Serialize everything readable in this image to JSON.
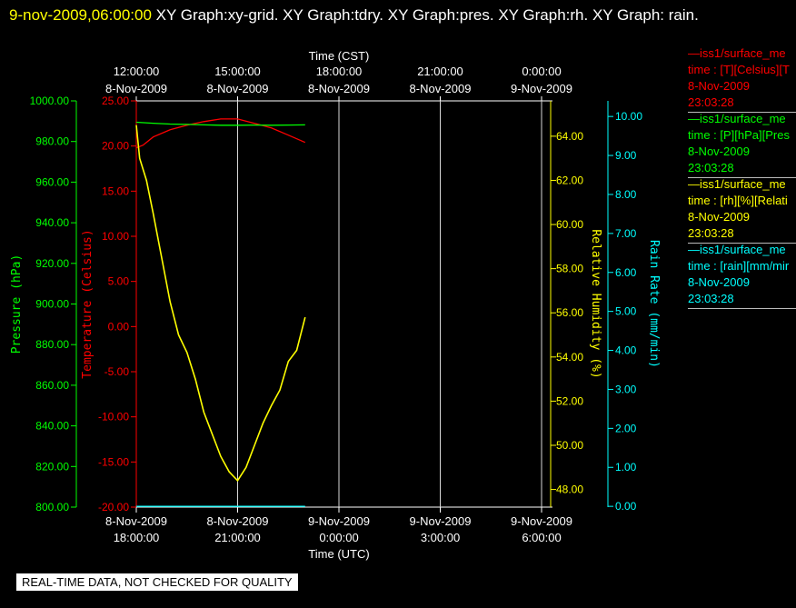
{
  "header": {
    "date": "9-nov-2009,06:00:00",
    "titles": "  XY Graph:xy-grid.  XY Graph:tdry.  XY Graph:pres.  XY Graph:rh.  XY Graph: rain."
  },
  "banner": "REAL-TIME DATA, NOT CHECKED FOR QUALITY",
  "colors": {
    "temperature": "#ff0000",
    "pressure": "#00ff00",
    "humidity": "#ffff00",
    "rain": "#00ffff",
    "grid": "#ffffff"
  },
  "legend": [
    {
      "name": "—iss1/surface_me",
      "line2": "time : [T][Celsius][T",
      "date": "8-Nov-2009",
      "time": "23:03:28",
      "color": "#ff0000"
    },
    {
      "name": "—iss1/surface_me",
      "line2": "time : [P][hPa][Pres",
      "date": "8-Nov-2009",
      "time": "23:03:28",
      "color": "#00ff00"
    },
    {
      "name": "—iss1/surface_me",
      "line2": "time : [rh][%][Relati",
      "date": "8-Nov-2009",
      "time": "23:03:28",
      "color": "#ffff00"
    },
    {
      "name": "—iss1/surface_me",
      "line2": "time : [rain][mm/mir",
      "date": "8-Nov-2009",
      "time": "23:03:28",
      "color": "#00ffff"
    }
  ],
  "chart_data": {
    "type": "line",
    "x_top": {
      "label": "Time (CST)",
      "ticks": [
        {
          "time": "12:00:00",
          "date": "8-Nov-2009"
        },
        {
          "time": "15:00:00",
          "date": "8-Nov-2009"
        },
        {
          "time": "18:00:00",
          "date": "8-Nov-2009"
        },
        {
          "time": "21:00:00",
          "date": "8-Nov-2009"
        },
        {
          "time": "0:00:00",
          "date": "9-Nov-2009"
        }
      ]
    },
    "x_bottom": {
      "label": "Time (UTC)",
      "range": [
        "2009-11-08T18:00:00Z",
        "2009-11-09T06:00:00Z"
      ],
      "ticks": [
        {
          "date": "8-Nov-2009",
          "time": "18:00:00"
        },
        {
          "date": "8-Nov-2009",
          "time": "21:00:00"
        },
        {
          "date": "9-Nov-2009",
          "time": "0:00:00"
        },
        {
          "date": "9-Nov-2009",
          "time": "3:00:00"
        },
        {
          "date": "9-Nov-2009",
          "time": "6:00:00"
        }
      ]
    },
    "axes": {
      "pressure": {
        "label": "Pressure (hPa)",
        "range": [
          800,
          1000
        ],
        "ticks": [
          "800.00",
          "820.00",
          "840.00",
          "860.00",
          "880.00",
          "900.00",
          "920.00",
          "940.00",
          "960.00",
          "980.00",
          "1000.00"
        ]
      },
      "temperature": {
        "label": "Temperature (Celsius)",
        "range": [
          -20,
          25
        ],
        "ticks": [
          "-20.00",
          "-15.00",
          "-10.00",
          "-5.00",
          "0.00",
          "5.00",
          "10.00",
          "15.00",
          "20.00",
          "25.00"
        ]
      },
      "humidity": {
        "label": "Relative Humidity (%)",
        "range": [
          47.2,
          65.6
        ],
        "ticks": [
          "48.00",
          "50.00",
          "52.00",
          "54.00",
          "56.00",
          "58.00",
          "60.00",
          "62.00",
          "64.00"
        ]
      },
      "rain": {
        "label": "Rain Rate (mm/min)",
        "range": [
          -0.02,
          10.4
        ],
        "ticks": [
          "0.00",
          "1.00",
          "2.00",
          "3.00",
          "4.00",
          "5.00",
          "6.00",
          "7.00",
          "8.00",
          "9.00",
          "10.00"
        ]
      }
    },
    "series": [
      {
        "name": "T (Celsius)",
        "axis": "temperature",
        "x_hours": [
          0,
          0.2,
          0.5,
          1,
          1.5,
          2,
          2.5,
          3,
          3.5,
          4,
          4.5,
          5
        ],
        "values": [
          19.8,
          20.1,
          21.0,
          21.8,
          22.3,
          22.7,
          23.0,
          23.0,
          22.5,
          22.0,
          21.2,
          20.4
        ]
      },
      {
        "name": "P (hPa)",
        "axis": "pressure",
        "x_hours": [
          0,
          0.5,
          1,
          1.5,
          2,
          2.5,
          3,
          3.5,
          4,
          4.5,
          5
        ],
        "values": [
          989.5,
          989.0,
          988.6,
          988.4,
          988.2,
          988.0,
          988.0,
          988.1,
          988.0,
          988.1,
          988.2
        ]
      },
      {
        "name": "rh (%)",
        "axis": "humidity",
        "x_hours": [
          0,
          0.1,
          0.3,
          0.5,
          0.75,
          1,
          1.25,
          1.5,
          1.75,
          2,
          2.25,
          2.5,
          2.75,
          3,
          3.25,
          3.5,
          3.75,
          4,
          4.25,
          4.5,
          4.75,
          5
        ],
        "values": [
          64.5,
          63.0,
          62.0,
          60.5,
          58.5,
          56.5,
          55.0,
          54.2,
          53.0,
          51.5,
          50.5,
          49.5,
          48.8,
          48.4,
          49.0,
          50.0,
          51.0,
          51.8,
          52.5,
          53.8,
          54.3,
          55.8
        ]
      },
      {
        "name": "rain (mm/min)",
        "axis": "rain",
        "x_hours": [
          0,
          5
        ],
        "values": [
          0.0,
          0.0
        ]
      }
    ],
    "grid": true
  }
}
